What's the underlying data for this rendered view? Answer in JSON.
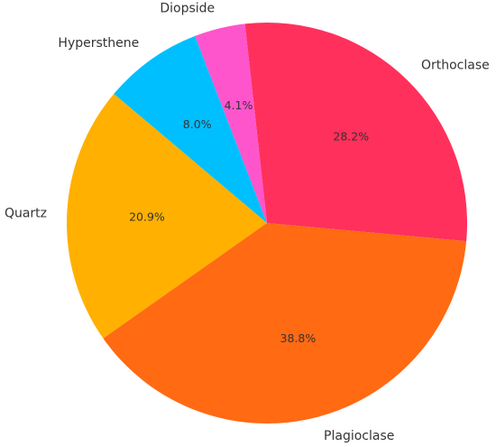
{
  "chart_data": {
    "type": "pie",
    "categories": [
      "Orthoclase",
      "Diopside",
      "Hypersthene",
      "Quartz",
      "Plagioclase"
    ],
    "values": [
      28.2,
      4.1,
      8.0,
      20.9,
      38.8
    ],
    "value_labels": [
      "28.2%",
      "4.1%",
      "8.0%",
      "20.9%",
      "38.8%"
    ],
    "colors": [
      "#ff305c",
      "#ff55cc",
      "#00bfff",
      "#ffb000",
      "#ff6a13"
    ]
  }
}
